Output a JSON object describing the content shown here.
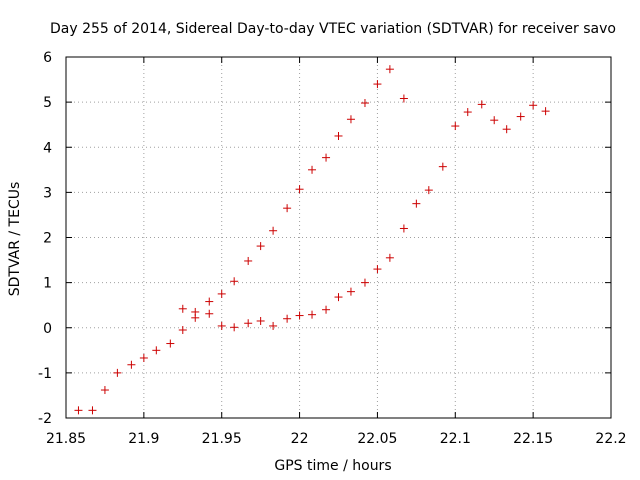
{
  "chart_data": {
    "type": "scatter",
    "title": "Day 255 of 2014, Sidereal Day-to-day VTEC variation (SDTVAR) for receiver savo",
    "xlabel": "GPS time / hours",
    "ylabel": "SDTVAR / TECUs",
    "xlim": [
      21.85,
      22.2
    ],
    "ylim": [
      -2,
      6
    ],
    "xticks": [
      21.85,
      21.9,
      21.95,
      22,
      22.05,
      22.1,
      22.15,
      22.2
    ],
    "xtick_labels": [
      "21.85",
      "21.9",
      "21.95",
      "22",
      "22.05",
      "22.1",
      "22.15",
      "22.2"
    ],
    "yticks": [
      -2,
      -1,
      0,
      1,
      2,
      3,
      4,
      5,
      6
    ],
    "ytick_labels": [
      "-2",
      "-1",
      "0",
      "1",
      "2",
      "3",
      "4",
      "5",
      "6"
    ],
    "grid": true,
    "marker": "+",
    "marker_color": "#cc0000",
    "series": [
      {
        "points": [
          [
            21.858,
            -1.83
          ],
          [
            21.867,
            -1.83
          ],
          [
            21.875,
            -1.38
          ],
          [
            21.883,
            -1.0
          ],
          [
            21.892,
            -0.82
          ],
          [
            21.9,
            -0.67
          ],
          [
            21.908,
            -0.5
          ],
          [
            21.917,
            -0.35
          ],
          [
            21.925,
            -0.05
          ],
          [
            21.925,
            0.42
          ],
          [
            21.933,
            0.35
          ],
          [
            21.933,
            0.22
          ],
          [
            21.942,
            0.58
          ],
          [
            21.942,
            0.31
          ],
          [
            21.95,
            0.75
          ],
          [
            21.95,
            0.04
          ],
          [
            21.958,
            1.03
          ],
          [
            21.958,
            0.01
          ],
          [
            21.967,
            1.48
          ],
          [
            21.967,
            0.1
          ],
          [
            21.975,
            1.81
          ],
          [
            21.975,
            0.15
          ],
          [
            21.983,
            2.15
          ],
          [
            21.983,
            0.04
          ],
          [
            21.992,
            2.65
          ],
          [
            21.992,
            0.2
          ],
          [
            22.0,
            3.07
          ],
          [
            22.0,
            0.27
          ],
          [
            22.008,
            3.5
          ],
          [
            22.008,
            0.29
          ],
          [
            22.017,
            3.77
          ],
          [
            22.017,
            0.4
          ],
          [
            22.025,
            4.25
          ],
          [
            22.025,
            0.68
          ],
          [
            22.033,
            4.62
          ],
          [
            22.033,
            0.8
          ],
          [
            22.042,
            4.98
          ],
          [
            22.042,
            1.0
          ],
          [
            22.05,
            5.4
          ],
          [
            22.05,
            1.3
          ],
          [
            22.058,
            5.73
          ],
          [
            22.058,
            1.55
          ],
          [
            22.067,
            5.08
          ],
          [
            22.067,
            2.2
          ],
          [
            22.075,
            2.75
          ],
          [
            22.083,
            3.05
          ],
          [
            22.092,
            3.57
          ],
          [
            22.1,
            4.47
          ],
          [
            22.108,
            4.78
          ],
          [
            22.117,
            4.95
          ],
          [
            22.125,
            4.6
          ],
          [
            22.133,
            4.4
          ],
          [
            22.142,
            4.68
          ],
          [
            22.15,
            4.93
          ],
          [
            22.158,
            4.8
          ]
        ]
      }
    ]
  }
}
